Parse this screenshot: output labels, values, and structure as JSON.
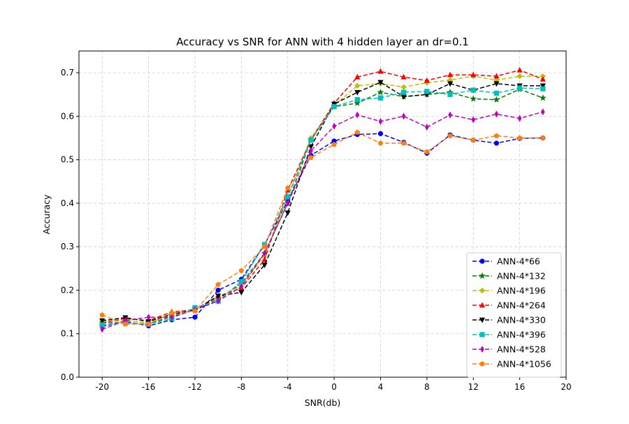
{
  "chart_data": {
    "type": "line",
    "title": "Accuracy vs SNR for ANN with 4 hidden layer an dr=0.1",
    "xlabel": "SNR(db)",
    "ylabel": "Accuracy",
    "xlim": [
      -22,
      20
    ],
    "ylim": [
      0,
      0.75
    ],
    "xticks": [
      -20,
      -16,
      -12,
      -8,
      -4,
      0,
      4,
      8,
      12,
      16,
      20
    ],
    "xtick_labels": [
      "-20",
      "-16",
      "-12",
      "-8",
      "-4",
      "0",
      "4",
      "8",
      "12",
      "16",
      "20"
    ],
    "yticks": [
      0,
      0.1,
      0.2,
      0.3,
      0.4,
      0.5,
      0.6,
      0.7
    ],
    "ytick_labels": [
      "0.0",
      "0.1",
      "0.2",
      "0.3",
      "0.4",
      "0.5",
      "0.6",
      "0.7"
    ],
    "grid": true,
    "legend_position": "bottom-right",
    "x": [
      -20,
      -18,
      -16,
      -14,
      -12,
      -10,
      -8,
      -6,
      -4,
      -2,
      0,
      2,
      4,
      6,
      8,
      10,
      12,
      14,
      16,
      18
    ],
    "series": [
      {
        "name": "ANN-4*66",
        "color": "#0000ff",
        "marker": "circle",
        "values": [
          0.117,
          0.128,
          0.118,
          0.132,
          0.138,
          0.2,
          0.225,
          0.305,
          0.405,
          0.51,
          0.543,
          0.558,
          0.56,
          0.54,
          0.515,
          0.557,
          0.545,
          0.538,
          0.549,
          0.55
        ]
      },
      {
        "name": "ANN-4*132",
        "color": "#008000",
        "marker": "star",
        "values": [
          0.125,
          0.125,
          0.122,
          0.14,
          0.155,
          0.18,
          0.215,
          0.285,
          0.4,
          0.545,
          0.622,
          0.63,
          0.655,
          0.645,
          0.65,
          0.655,
          0.64,
          0.638,
          0.662,
          0.642
        ]
      },
      {
        "name": "ANN-4*196",
        "color": "#bfbf00",
        "marker": "diamond",
        "values": [
          0.128,
          0.13,
          0.125,
          0.143,
          0.155,
          0.185,
          0.21,
          0.28,
          0.415,
          0.55,
          0.625,
          0.67,
          0.675,
          0.667,
          0.677,
          0.683,
          0.692,
          0.683,
          0.692,
          0.692
        ]
      },
      {
        "name": "ANN-4*264",
        "color": "#ff0000",
        "marker": "triangle-up",
        "values": [
          0.125,
          0.135,
          0.13,
          0.15,
          0.155,
          0.185,
          0.205,
          0.27,
          0.43,
          0.545,
          0.63,
          0.69,
          0.703,
          0.69,
          0.682,
          0.695,
          0.695,
          0.692,
          0.706,
          0.685
        ]
      },
      {
        "name": "ANN-4*330",
        "color": "#000000",
        "marker": "triangle-down",
        "values": [
          0.13,
          0.137,
          0.128,
          0.145,
          0.155,
          0.187,
          0.195,
          0.258,
          0.378,
          0.53,
          0.628,
          0.655,
          0.678,
          0.645,
          0.65,
          0.675,
          0.66,
          0.675,
          0.67,
          0.67
        ]
      },
      {
        "name": "ANN-4*396",
        "color": "#00bfbf",
        "marker": "square",
        "values": [
          0.12,
          0.125,
          0.122,
          0.135,
          0.16,
          0.175,
          0.22,
          0.305,
          0.415,
          0.545,
          0.622,
          0.638,
          0.642,
          0.655,
          0.657,
          0.65,
          0.66,
          0.653,
          0.665,
          0.663
        ]
      },
      {
        "name": "ANN-4*528",
        "color": "#bf00bf",
        "marker": "thin-diamond",
        "values": [
          0.11,
          0.13,
          0.138,
          0.138,
          0.155,
          0.175,
          0.208,
          0.285,
          0.4,
          0.52,
          0.577,
          0.603,
          0.588,
          0.6,
          0.575,
          0.603,
          0.592,
          0.605,
          0.595,
          0.61
        ]
      },
      {
        "name": "ANN-4*1056",
        "color": "#ff7f0e",
        "marker": "pentagon",
        "values": [
          0.143,
          0.122,
          0.122,
          0.148,
          0.152,
          0.213,
          0.245,
          0.3,
          0.435,
          0.505,
          0.535,
          0.563,
          0.538,
          0.538,
          0.518,
          0.555,
          0.545,
          0.555,
          0.55,
          0.55
        ]
      }
    ]
  }
}
